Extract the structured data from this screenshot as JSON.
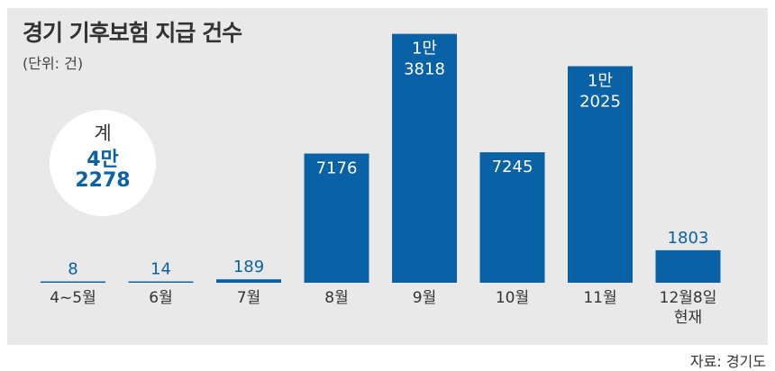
{
  "title": "경기 기후보험 지급 건수",
  "unit": "(단위: 건)",
  "total": {
    "label": "계",
    "line1": "4만",
    "line2": "2278"
  },
  "source": "자료: 경기도",
  "colors": {
    "bar": "#0a62a6",
    "panel": "#e9e9e9",
    "label_dark": "#0a62a6",
    "label_light": "#ffffff"
  },
  "chart_data": {
    "type": "bar",
    "categories": [
      "4~5월",
      "6월",
      "7월",
      "8월",
      "9월",
      "10월",
      "11월",
      "12월8일 현재"
    ],
    "category_lines": [
      [
        "4~5월"
      ],
      [
        "6월"
      ],
      [
        "7월"
      ],
      [
        "8월"
      ],
      [
        "9월"
      ],
      [
        "10월"
      ],
      [
        "11월"
      ],
      [
        "12월8일",
        "현재"
      ]
    ],
    "values": [
      8,
      14,
      189,
      7176,
      13818,
      7245,
      12025,
      1803
    ],
    "value_labels": [
      [
        "8"
      ],
      [
        "14"
      ],
      [
        "189"
      ],
      [
        "7176"
      ],
      [
        "1만",
        "3818"
      ],
      [
        "7245"
      ],
      [
        "1만",
        "2025"
      ],
      [
        "1803"
      ]
    ],
    "title": "경기 기후보험 지급 건수",
    "ylabel": "",
    "ylim": [
      0,
      14000
    ],
    "grid": false,
    "legend": "none"
  }
}
